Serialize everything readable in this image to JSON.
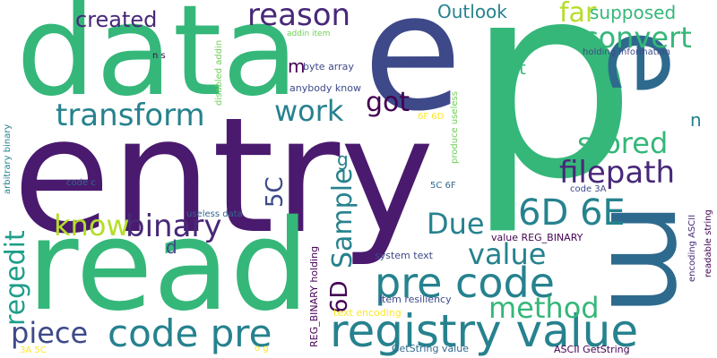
{
  "colors": {
    "background": "#ffffff",
    "palette": [
      "#440154",
      "#482878",
      "#3e4989",
      "#31688e",
      "#26828e",
      "#1f9e89",
      "#35b779",
      "#6ece58",
      "#b5de2b",
      "#fde725"
    ]
  },
  "words": [
    {
      "text": "p",
      "color": "#35b779"
    },
    {
      "text": "entry",
      "color": "#4a1a6e"
    },
    {
      "text": "e",
      "color": "#3e4989"
    },
    {
      "text": "data",
      "color": "#35b779"
    },
    {
      "text": "read",
      "color": "#35b779"
    },
    {
      "text": "m",
      "color": "#2e6a8d"
    },
    {
      "text": "e",
      "color": "#2e6a8d"
    },
    {
      "text": "registry value",
      "color": "#26828e"
    },
    {
      "text": "pre code",
      "color": "#26828e"
    },
    {
      "text": "code pre",
      "color": "#26828e"
    },
    {
      "text": "6D 6E",
      "color": "#26828e"
    },
    {
      "text": "transform",
      "color": "#26828e"
    },
    {
      "text": "reason",
      "color": "#482878"
    },
    {
      "text": "convert",
      "color": "#35b779"
    },
    {
      "text": "binary",
      "color": "#482878"
    },
    {
      "text": "filepath",
      "color": "#482878"
    },
    {
      "text": "method",
      "color": "#35b779"
    },
    {
      "text": "value",
      "color": "#26828e"
    },
    {
      "text": "piece",
      "color": "#3e4989"
    },
    {
      "text": "work",
      "color": "#26828e"
    },
    {
      "text": "stored",
      "color": "#35b779"
    },
    {
      "text": "Due",
      "color": "#26828e"
    },
    {
      "text": "know",
      "color": "#b5de2b"
    },
    {
      "text": "got",
      "color": "#440154"
    },
    {
      "text": "far",
      "color": "#b5de2b"
    },
    {
      "text": "created",
      "color": "#482878"
    },
    {
      "text": "supposed",
      "color": "#35b779"
    },
    {
      "text": "Outlook",
      "color": "#26828e"
    },
    {
      "text": "regedit",
      "color": "#1f9e89"
    },
    {
      "text": "Sample",
      "color": "#26828e"
    },
    {
      "text": "6D",
      "color": "#440154"
    },
    {
      "text": "5C",
      "color": "#3e4989"
    },
    {
      "text": "m",
      "color": "#440154"
    },
    {
      "text": "t",
      "color": "#35b779"
    },
    {
      "text": "n",
      "color": "#26828e"
    },
    {
      "text": "d",
      "color": "#3e4989"
    },
    {
      "text": "g",
      "color": "#26828e"
    },
    {
      "text": "value REG_BINARY",
      "color": "#440154"
    },
    {
      "text": "REG_BINARY holding",
      "color": "#440154"
    },
    {
      "text": "byte array",
      "color": "#3e4989"
    },
    {
      "text": "anybody know",
      "color": "#3e4989"
    },
    {
      "text": "holding information",
      "color": "#3e4989"
    },
    {
      "text": "system text",
      "color": "#3e4989"
    },
    {
      "text": "item resiliency",
      "color": "#3e4989"
    },
    {
      "text": "text encoding",
      "color": "#fde725"
    },
    {
      "text": "GetString value",
      "color": "#31688e"
    },
    {
      "text": "ASCII GetString",
      "color": "#440154"
    },
    {
      "text": "useless data",
      "color": "#31688e"
    },
    {
      "text": "code c",
      "color": "#31688e"
    },
    {
      "text": "code 3A",
      "color": "#3e4989"
    },
    {
      "text": "5C 6F",
      "color": "#31688e"
    },
    {
      "text": "6F 6D",
      "color": "#fde725"
    },
    {
      "text": "addin item",
      "color": "#6ece58"
    },
    {
      "text": "disabled addin",
      "color": "#6ece58"
    },
    {
      "text": "produce useless",
      "color": "#6ece58"
    },
    {
      "text": "arbitrary binary",
      "color": "#26828e"
    },
    {
      "text": "encoding ASCII",
      "color": "#482878"
    },
    {
      "text": "readable string",
      "color": "#440154"
    },
    {
      "text": "n s",
      "color": "#440154"
    },
    {
      "text": "3A 5C",
      "color": "#fde725"
    },
    {
      "text": "o g",
      "color": "#fde725"
    }
  ]
}
